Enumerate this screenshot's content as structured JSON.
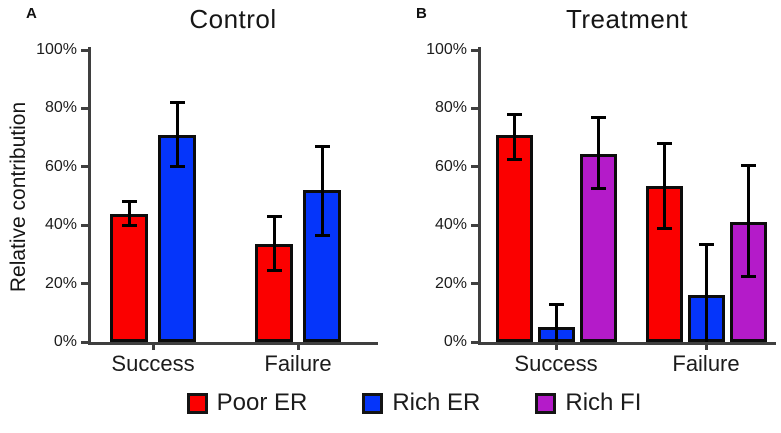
{
  "figure": {
    "ylabel": "Relative contribution",
    "background": "#ffffff",
    "axis_color": "#3f3f3f",
    "legend": [
      {
        "label": "Poor ER",
        "color": "#fb0000"
      },
      {
        "label": "Rich ER",
        "color": "#0535fa"
      },
      {
        "label": "Rich FI",
        "color": "#b41bc9"
      }
    ]
  },
  "chart_data": [
    {
      "type": "bar",
      "panel_label": "A",
      "title": "Control",
      "ylabel": "Relative contribution",
      "xlabel": "",
      "categories": [
        "Success",
        "Failure"
      ],
      "yticks": [
        "100%",
        "80%",
        "60%",
        "40%",
        "20%",
        "0%"
      ],
      "ylim": [
        0,
        100
      ],
      "unit": "%",
      "grid": false,
      "error_bars": true,
      "series": [
        {
          "name": "Poor ER",
          "color": "#fb0000",
          "values": [
            44,
            33.5
          ],
          "err_hi": [
            48.5,
            43.5
          ],
          "err_lo": [
            39.5,
            24
          ]
        },
        {
          "name": "Rich ER",
          "color": "#0535fa",
          "values": [
            71,
            52
          ],
          "err_hi": [
            82.5,
            67.5
          ],
          "err_lo": [
            59.5,
            36
          ]
        }
      ]
    },
    {
      "type": "bar",
      "panel_label": "B",
      "title": "Treatment",
      "ylabel": "",
      "xlabel": "",
      "categories": [
        "Success",
        "Failure"
      ],
      "yticks": [
        "100%",
        "80%",
        "60%",
        "40%",
        "20%",
        "0%"
      ],
      "ylim": [
        0,
        100
      ],
      "unit": "%",
      "grid": false,
      "error_bars": true,
      "series": [
        {
          "name": "Poor ER",
          "color": "#fb0000",
          "values": [
            71,
            53.5
          ],
          "err_hi": [
            78.5,
            68.5
          ],
          "err_lo": [
            62,
            38.5
          ]
        },
        {
          "name": "Rich ER",
          "color": "#0535fa",
          "values": [
            5,
            16
          ],
          "err_hi": [
            13.5,
            34
          ],
          "err_lo": [
            0,
            0
          ]
        },
        {
          "name": "Rich FI",
          "color": "#b41bc9",
          "values": [
            64.5,
            41
          ],
          "err_hi": [
            77.5,
            61
          ],
          "err_lo": [
            52,
            22
          ]
        }
      ]
    }
  ]
}
